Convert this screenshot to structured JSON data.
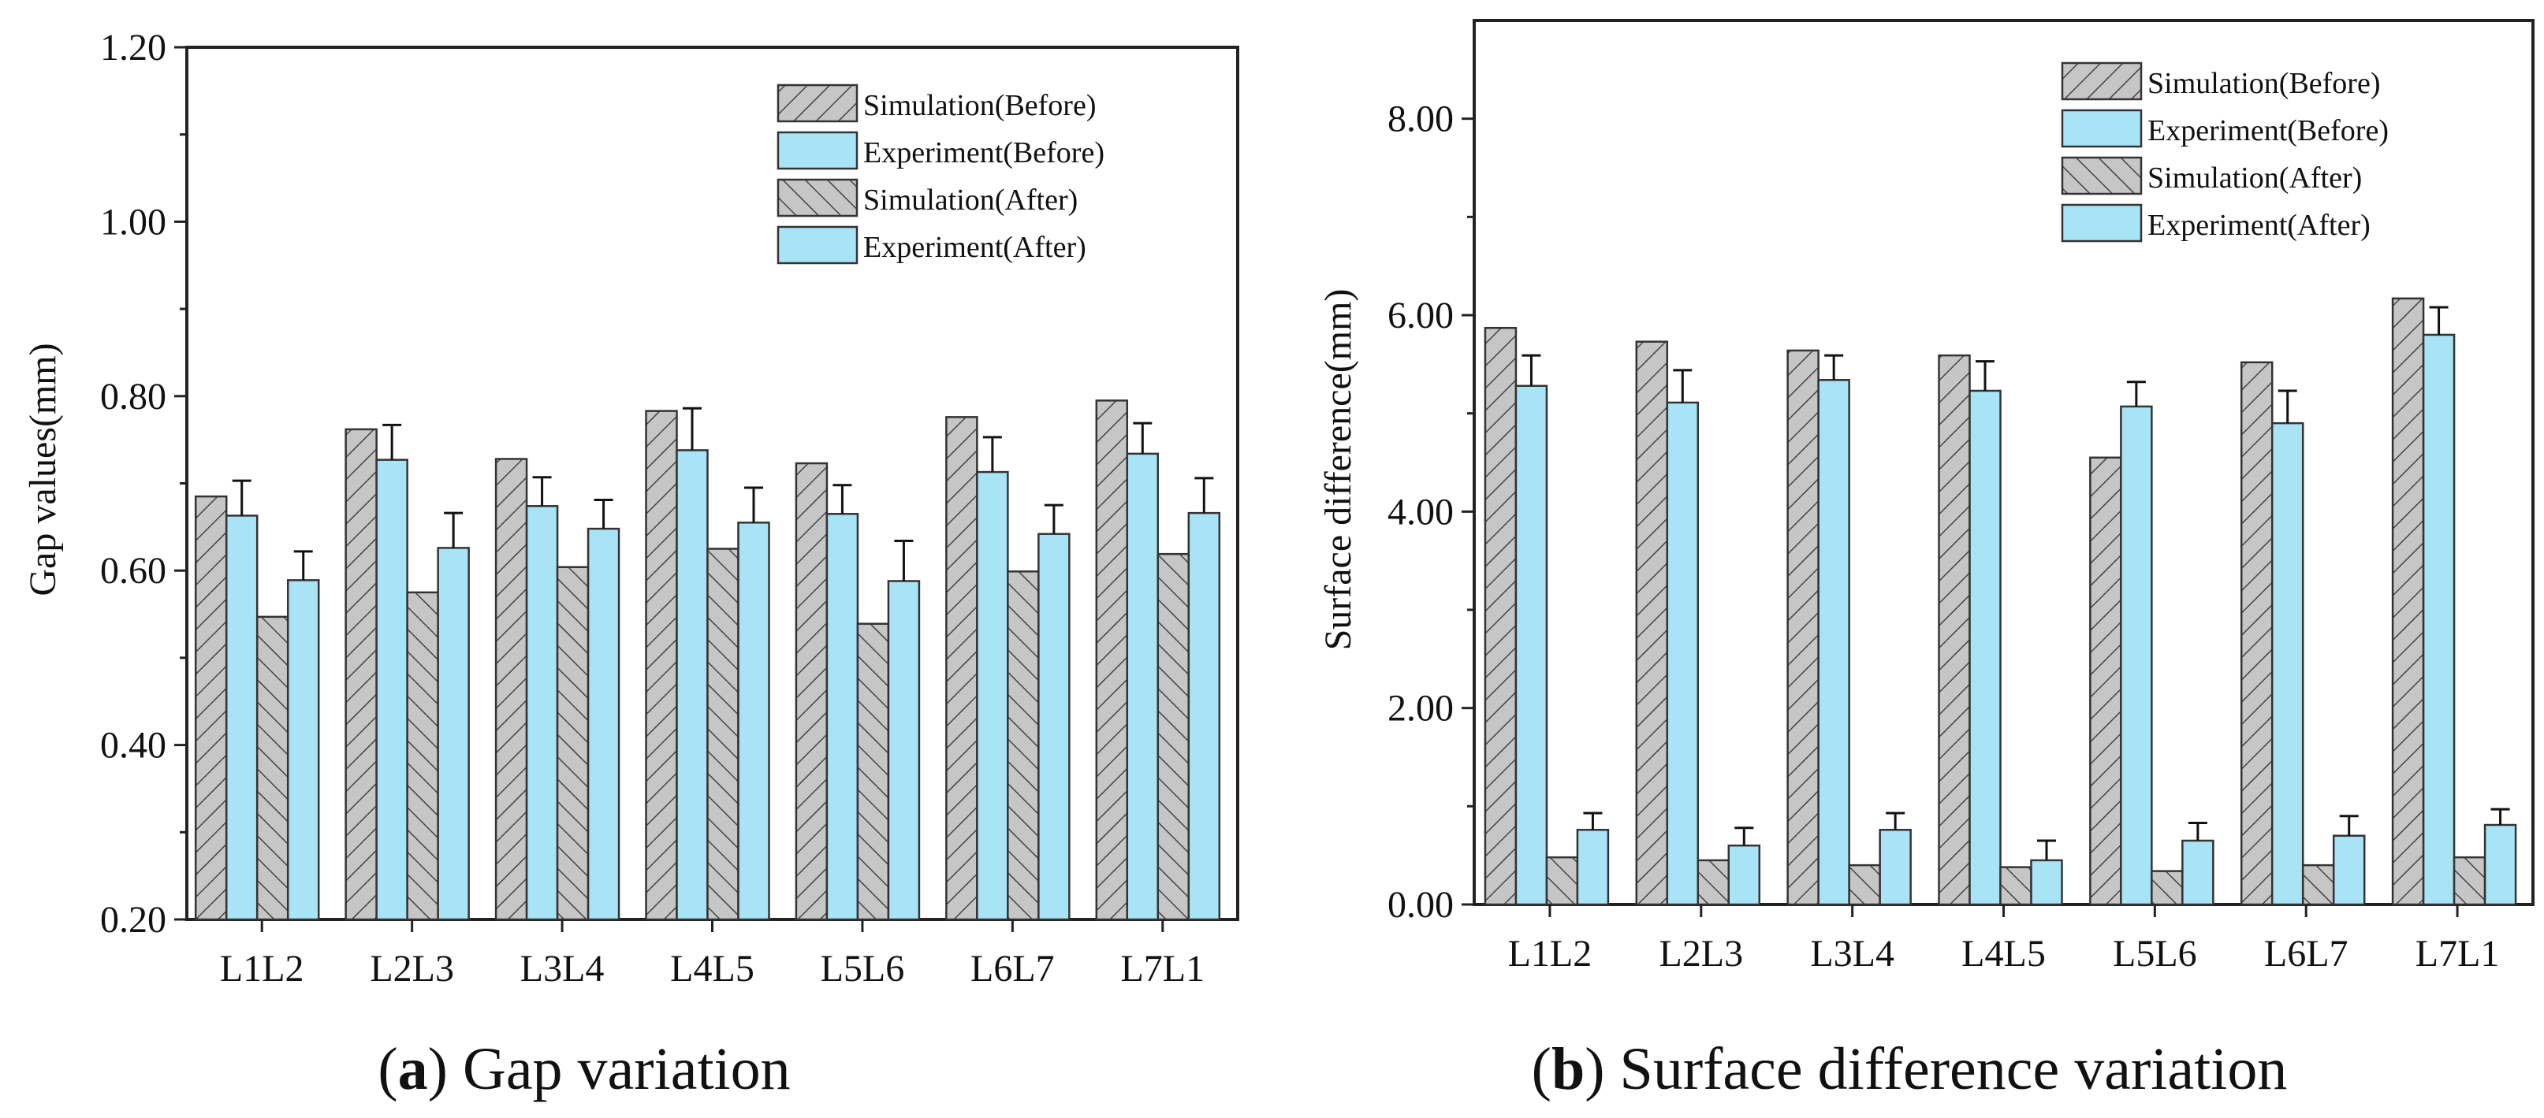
{
  "chart_data": [
    {
      "type": "bar",
      "caption": {
        "letter": "a",
        "text": " Gap variation"
      },
      "ylabel": "Gap values(mm)",
      "xlabel": "",
      "ylim": [
        0.2,
        1.2
      ],
      "yticks": [
        "0.20",
        "0.40",
        "0.60",
        "0.80",
        "1.00",
        "1.20"
      ],
      "categories": [
        "L1L2",
        "L2L3",
        "L3L4",
        "L4L5",
        "L5L6",
        "L6L7",
        "L7L1"
      ],
      "legend_position": "top-right",
      "series": [
        {
          "name": "Simulation(Before)",
          "values": [
            0.685,
            0.762,
            0.728,
            0.783,
            0.723,
            0.776,
            0.795
          ]
        },
        {
          "name": "Experiment(Before)",
          "values": [
            0.663,
            0.727,
            0.674,
            0.738,
            0.665,
            0.713,
            0.734
          ],
          "errors": [
            0.04,
            0.04,
            0.033,
            0.048,
            0.033,
            0.04,
            0.035
          ]
        },
        {
          "name": "Simulation(After)",
          "values": [
            0.547,
            0.575,
            0.604,
            0.625,
            0.539,
            0.599,
            0.619
          ]
        },
        {
          "name": "Experiment(After)",
          "values": [
            0.589,
            0.626,
            0.648,
            0.655,
            0.588,
            0.642,
            0.666
          ],
          "errors": [
            0.033,
            0.04,
            0.033,
            0.04,
            0.046,
            0.033,
            0.04
          ]
        }
      ]
    },
    {
      "type": "bar",
      "caption": {
        "letter": "b",
        "text": " Surface difference variation"
      },
      "ylabel": "Surface difference(mm)",
      "xlabel": "",
      "ylim": [
        0,
        9
      ],
      "yticks": [
        "0.00",
        "2.00",
        "4.00",
        "6.00",
        "8.00"
      ],
      "categories": [
        "L1L2",
        "L2L3",
        "L3L4",
        "L4L5",
        "L5L6",
        "L6L7",
        "L7L1"
      ],
      "legend_position": "top-right",
      "series": [
        {
          "name": "Simulation(Before)",
          "values": [
            5.87,
            5.73,
            5.64,
            5.59,
            4.55,
            5.52,
            6.17
          ]
        },
        {
          "name": "Experiment(Before)",
          "values": [
            5.28,
            5.11,
            5.34,
            5.23,
            5.07,
            4.9,
            5.8
          ],
          "errors": [
            0.31,
            0.33,
            0.25,
            0.3,
            0.25,
            0.33,
            0.28
          ]
        },
        {
          "name": "Simulation(After)",
          "values": [
            0.48,
            0.45,
            0.4,
            0.38,
            0.34,
            0.4,
            0.48
          ]
        },
        {
          "name": "Experiment(After)",
          "values": [
            0.76,
            0.6,
            0.76,
            0.45,
            0.65,
            0.7,
            0.81
          ],
          "errors": [
            0.17,
            0.18,
            0.17,
            0.2,
            0.18,
            0.2,
            0.16
          ]
        }
      ]
    }
  ],
  "colors": {
    "sim_before_fill": "#c6c6c6",
    "exp_fill": "#a8e4f6",
    "sim_after_fill": "#c6c6c6",
    "stroke": "#333333"
  }
}
